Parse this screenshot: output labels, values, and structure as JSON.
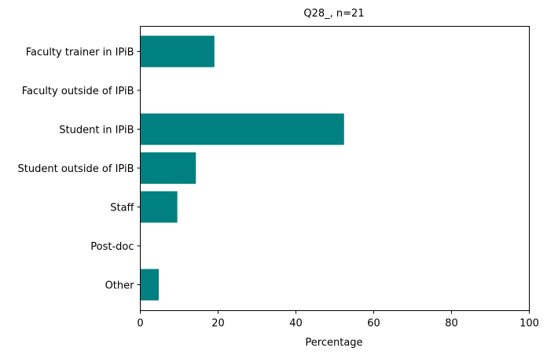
{
  "chart_data": {
    "type": "bar",
    "orientation": "horizontal",
    "title": "Q28_, n=21",
    "xlabel": "Percentage",
    "ylabel": "",
    "categories": [
      "Faculty trainer in IPiB",
      "Faculty outside of IPiB",
      "Student in IPiB",
      "Student outside of IPiB",
      "Staff",
      "Post-doc",
      "Other"
    ],
    "values": [
      19.05,
      0,
      52.38,
      14.29,
      9.52,
      0,
      4.76
    ],
    "xlim": [
      0,
      100
    ],
    "xticks": [
      0,
      20,
      40,
      60,
      80,
      100
    ],
    "bar_color": "#008080",
    "grid": false,
    "legend": "none"
  }
}
